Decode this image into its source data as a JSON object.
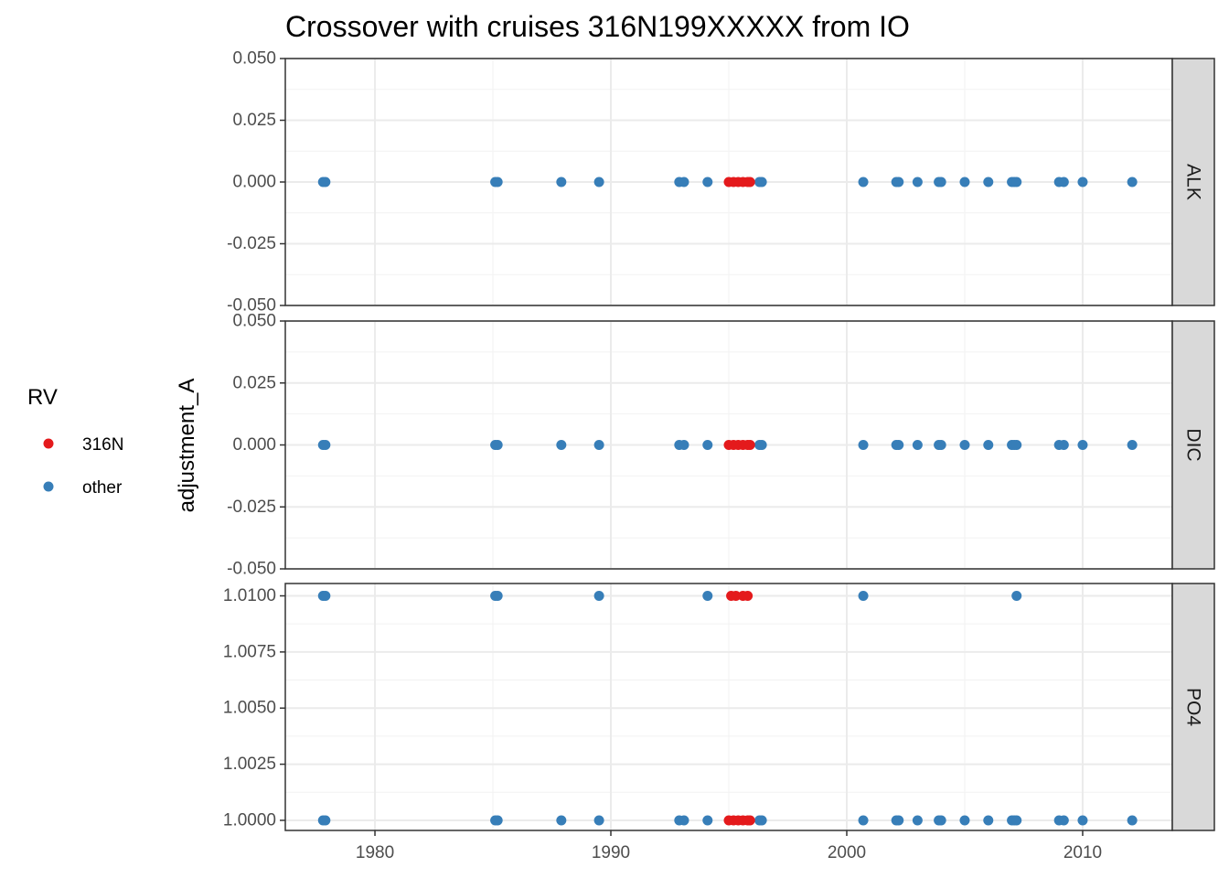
{
  "chart_data": {
    "type": "scatter",
    "title": "Crossover with cruises 316N199XXXXX from IO",
    "xlabel": "",
    "ylabel": "adjustment_A",
    "xlim": [
      1976.2,
      2013.8
    ],
    "x_ticks": [
      1980,
      1990,
      2000,
      2010
    ],
    "x_tick_labels": [
      "1980",
      "1990",
      "2000",
      "2010"
    ],
    "legend": {
      "title": "RV",
      "position": "left",
      "entries": [
        {
          "label": "316N",
          "color": "#e41a1c"
        },
        {
          "label": "other",
          "color": "#377eb8"
        }
      ]
    },
    "grid": true,
    "facets": [
      {
        "label": "ALK",
        "ylim": [
          -0.05,
          0.05
        ],
        "y_ticks": [
          -0.05,
          -0.025,
          0.0,
          0.025,
          0.05
        ],
        "y_tick_labels": [
          "-0.050",
          "-0.025",
          "0.000",
          "0.025",
          "0.050"
        ],
        "series": [
          {
            "name": "other",
            "color": "#377eb8",
            "points": [
              {
                "x": 1977.8,
                "y": 0
              },
              {
                "x": 1977.9,
                "y": 0
              },
              {
                "x": 1985.1,
                "y": 0
              },
              {
                "x": 1985.2,
                "y": 0
              },
              {
                "x": 1987.9,
                "y": 0
              },
              {
                "x": 1989.5,
                "y": 0
              },
              {
                "x": 1992.9,
                "y": 0
              },
              {
                "x": 1993.1,
                "y": 0
              },
              {
                "x": 1994.1,
                "y": 0
              },
              {
                "x": 1996.3,
                "y": 0
              },
              {
                "x": 1996.4,
                "y": 0
              },
              {
                "x": 2000.7,
                "y": 0
              },
              {
                "x": 2002.1,
                "y": 0
              },
              {
                "x": 2002.2,
                "y": 0
              },
              {
                "x": 2003.0,
                "y": 0
              },
              {
                "x": 2003.9,
                "y": 0
              },
              {
                "x": 2004.0,
                "y": 0
              },
              {
                "x": 2005.0,
                "y": 0
              },
              {
                "x": 2006.0,
                "y": 0
              },
              {
                "x": 2007.0,
                "y": 0
              },
              {
                "x": 2007.1,
                "y": 0
              },
              {
                "x": 2007.2,
                "y": 0
              },
              {
                "x": 2009.0,
                "y": 0
              },
              {
                "x": 2009.2,
                "y": 0
              },
              {
                "x": 2010.0,
                "y": 0
              },
              {
                "x": 2012.1,
                "y": 0
              }
            ]
          },
          {
            "name": "316N",
            "color": "#e41a1c",
            "points": [
              {
                "x": 1995.0,
                "y": 0
              },
              {
                "x": 1995.2,
                "y": 0
              },
              {
                "x": 1995.4,
                "y": 0
              },
              {
                "x": 1995.6,
                "y": 0
              },
              {
                "x": 1995.8,
                "y": 0
              },
              {
                "x": 1995.9,
                "y": 0
              }
            ]
          }
        ]
      },
      {
        "label": "DIC",
        "ylim": [
          -0.05,
          0.05
        ],
        "y_ticks": [
          -0.05,
          -0.025,
          0.0,
          0.025,
          0.05
        ],
        "y_tick_labels": [
          "-0.050",
          "-0.025",
          "0.000",
          "0.025",
          "0.050"
        ],
        "series": [
          {
            "name": "other",
            "color": "#377eb8",
            "points": [
              {
                "x": 1977.8,
                "y": 0
              },
              {
                "x": 1977.9,
                "y": 0
              },
              {
                "x": 1985.1,
                "y": 0
              },
              {
                "x": 1985.2,
                "y": 0
              },
              {
                "x": 1987.9,
                "y": 0
              },
              {
                "x": 1989.5,
                "y": 0
              },
              {
                "x": 1992.9,
                "y": 0
              },
              {
                "x": 1993.1,
                "y": 0
              },
              {
                "x": 1994.1,
                "y": 0
              },
              {
                "x": 1996.3,
                "y": 0
              },
              {
                "x": 1996.4,
                "y": 0
              },
              {
                "x": 2000.7,
                "y": 0
              },
              {
                "x": 2002.1,
                "y": 0
              },
              {
                "x": 2002.2,
                "y": 0
              },
              {
                "x": 2003.0,
                "y": 0
              },
              {
                "x": 2003.9,
                "y": 0
              },
              {
                "x": 2004.0,
                "y": 0
              },
              {
                "x": 2005.0,
                "y": 0
              },
              {
                "x": 2006.0,
                "y": 0
              },
              {
                "x": 2007.0,
                "y": 0
              },
              {
                "x": 2007.1,
                "y": 0
              },
              {
                "x": 2007.2,
                "y": 0
              },
              {
                "x": 2009.0,
                "y": 0
              },
              {
                "x": 2009.2,
                "y": 0
              },
              {
                "x": 2010.0,
                "y": 0
              },
              {
                "x": 2012.1,
                "y": 0
              }
            ]
          },
          {
            "name": "316N",
            "color": "#e41a1c",
            "points": [
              {
                "x": 1995.0,
                "y": 0
              },
              {
                "x": 1995.2,
                "y": 0
              },
              {
                "x": 1995.4,
                "y": 0
              },
              {
                "x": 1995.6,
                "y": 0
              },
              {
                "x": 1995.8,
                "y": 0
              },
              {
                "x": 1995.9,
                "y": 0
              }
            ]
          }
        ]
      },
      {
        "label": "PO4",
        "ylim": [
          0.99955,
          1.01055
        ],
        "y_ticks": [
          1.0,
          1.0025,
          1.005,
          1.0075,
          1.01
        ],
        "y_tick_labels": [
          "1.0000",
          "1.0025",
          "1.0050",
          "1.0075",
          "1.0100"
        ],
        "series": [
          {
            "name": "other",
            "color": "#377eb8",
            "points": [
              {
                "x": 1977.8,
                "y": 1.01
              },
              {
                "x": 1977.9,
                "y": 1.01
              },
              {
                "x": 1985.1,
                "y": 1.01
              },
              {
                "x": 1985.2,
                "y": 1.01
              },
              {
                "x": 1989.5,
                "y": 1.01
              },
              {
                "x": 1994.1,
                "y": 1.01
              },
              {
                "x": 2000.7,
                "y": 1.01
              },
              {
                "x": 2007.2,
                "y": 1.01
              },
              {
                "x": 1977.8,
                "y": 1.0
              },
              {
                "x": 1977.9,
                "y": 1.0
              },
              {
                "x": 1985.1,
                "y": 1.0
              },
              {
                "x": 1985.2,
                "y": 1.0
              },
              {
                "x": 1987.9,
                "y": 1.0
              },
              {
                "x": 1989.5,
                "y": 1.0
              },
              {
                "x": 1992.9,
                "y": 1.0
              },
              {
                "x": 1993.1,
                "y": 1.0
              },
              {
                "x": 1994.1,
                "y": 1.0
              },
              {
                "x": 1996.3,
                "y": 1.0
              },
              {
                "x": 1996.4,
                "y": 1.0
              },
              {
                "x": 2000.7,
                "y": 1.0
              },
              {
                "x": 2002.1,
                "y": 1.0
              },
              {
                "x": 2002.2,
                "y": 1.0
              },
              {
                "x": 2003.0,
                "y": 1.0
              },
              {
                "x": 2003.9,
                "y": 1.0
              },
              {
                "x": 2004.0,
                "y": 1.0
              },
              {
                "x": 2005.0,
                "y": 1.0
              },
              {
                "x": 2006.0,
                "y": 1.0
              },
              {
                "x": 2007.0,
                "y": 1.0
              },
              {
                "x": 2007.1,
                "y": 1.0
              },
              {
                "x": 2007.2,
                "y": 1.0
              },
              {
                "x": 2009.0,
                "y": 1.0
              },
              {
                "x": 2009.2,
                "y": 1.0
              },
              {
                "x": 2010.0,
                "y": 1.0
              },
              {
                "x": 2012.1,
                "y": 1.0
              }
            ]
          },
          {
            "name": "316N",
            "color": "#e41a1c",
            "points": [
              {
                "x": 1995.1,
                "y": 1.01
              },
              {
                "x": 1995.3,
                "y": 1.01
              },
              {
                "x": 1995.6,
                "y": 1.01
              },
              {
                "x": 1995.8,
                "y": 1.01
              },
              {
                "x": 1995.0,
                "y": 1.0
              },
              {
                "x": 1995.2,
                "y": 1.0
              },
              {
                "x": 1995.4,
                "y": 1.0
              },
              {
                "x": 1995.6,
                "y": 1.0
              },
              {
                "x": 1995.8,
                "y": 1.0
              },
              {
                "x": 1995.9,
                "y": 1.0
              }
            ]
          }
        ]
      }
    ]
  }
}
